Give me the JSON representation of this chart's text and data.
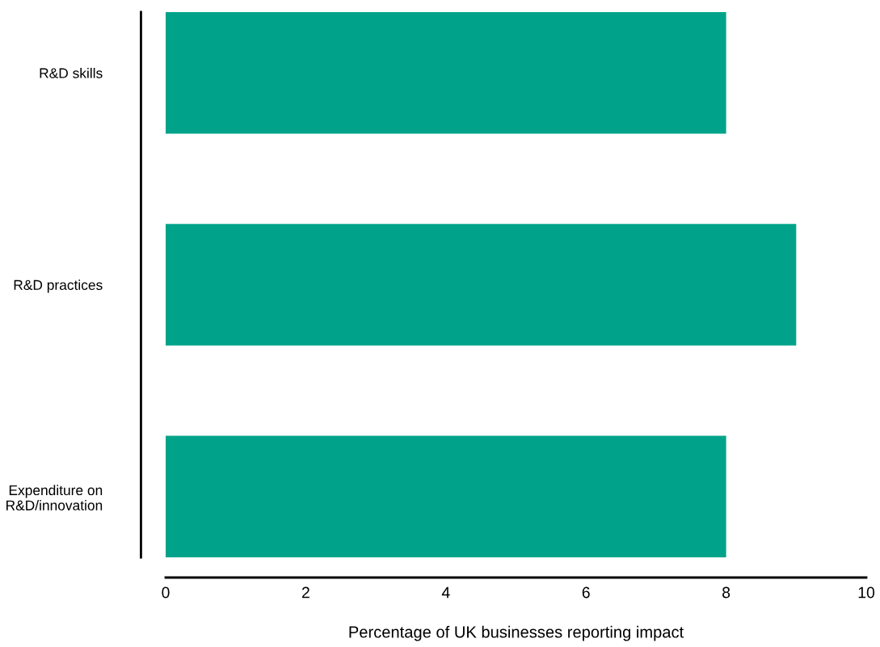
{
  "chart_data": {
    "type": "bar",
    "orientation": "horizontal",
    "categories": [
      "R&D skills",
      "R&D practices",
      "Expenditure on\nR&D/innovation"
    ],
    "values": [
      8,
      9,
      8
    ],
    "color": "#00a38a",
    "xlabel": "Percentage of UK businesses reporting impact",
    "xlim": [
      0,
      10
    ],
    "xticks": [
      0,
      2,
      4,
      6,
      8,
      10
    ],
    "grid": false,
    "legend": false
  }
}
